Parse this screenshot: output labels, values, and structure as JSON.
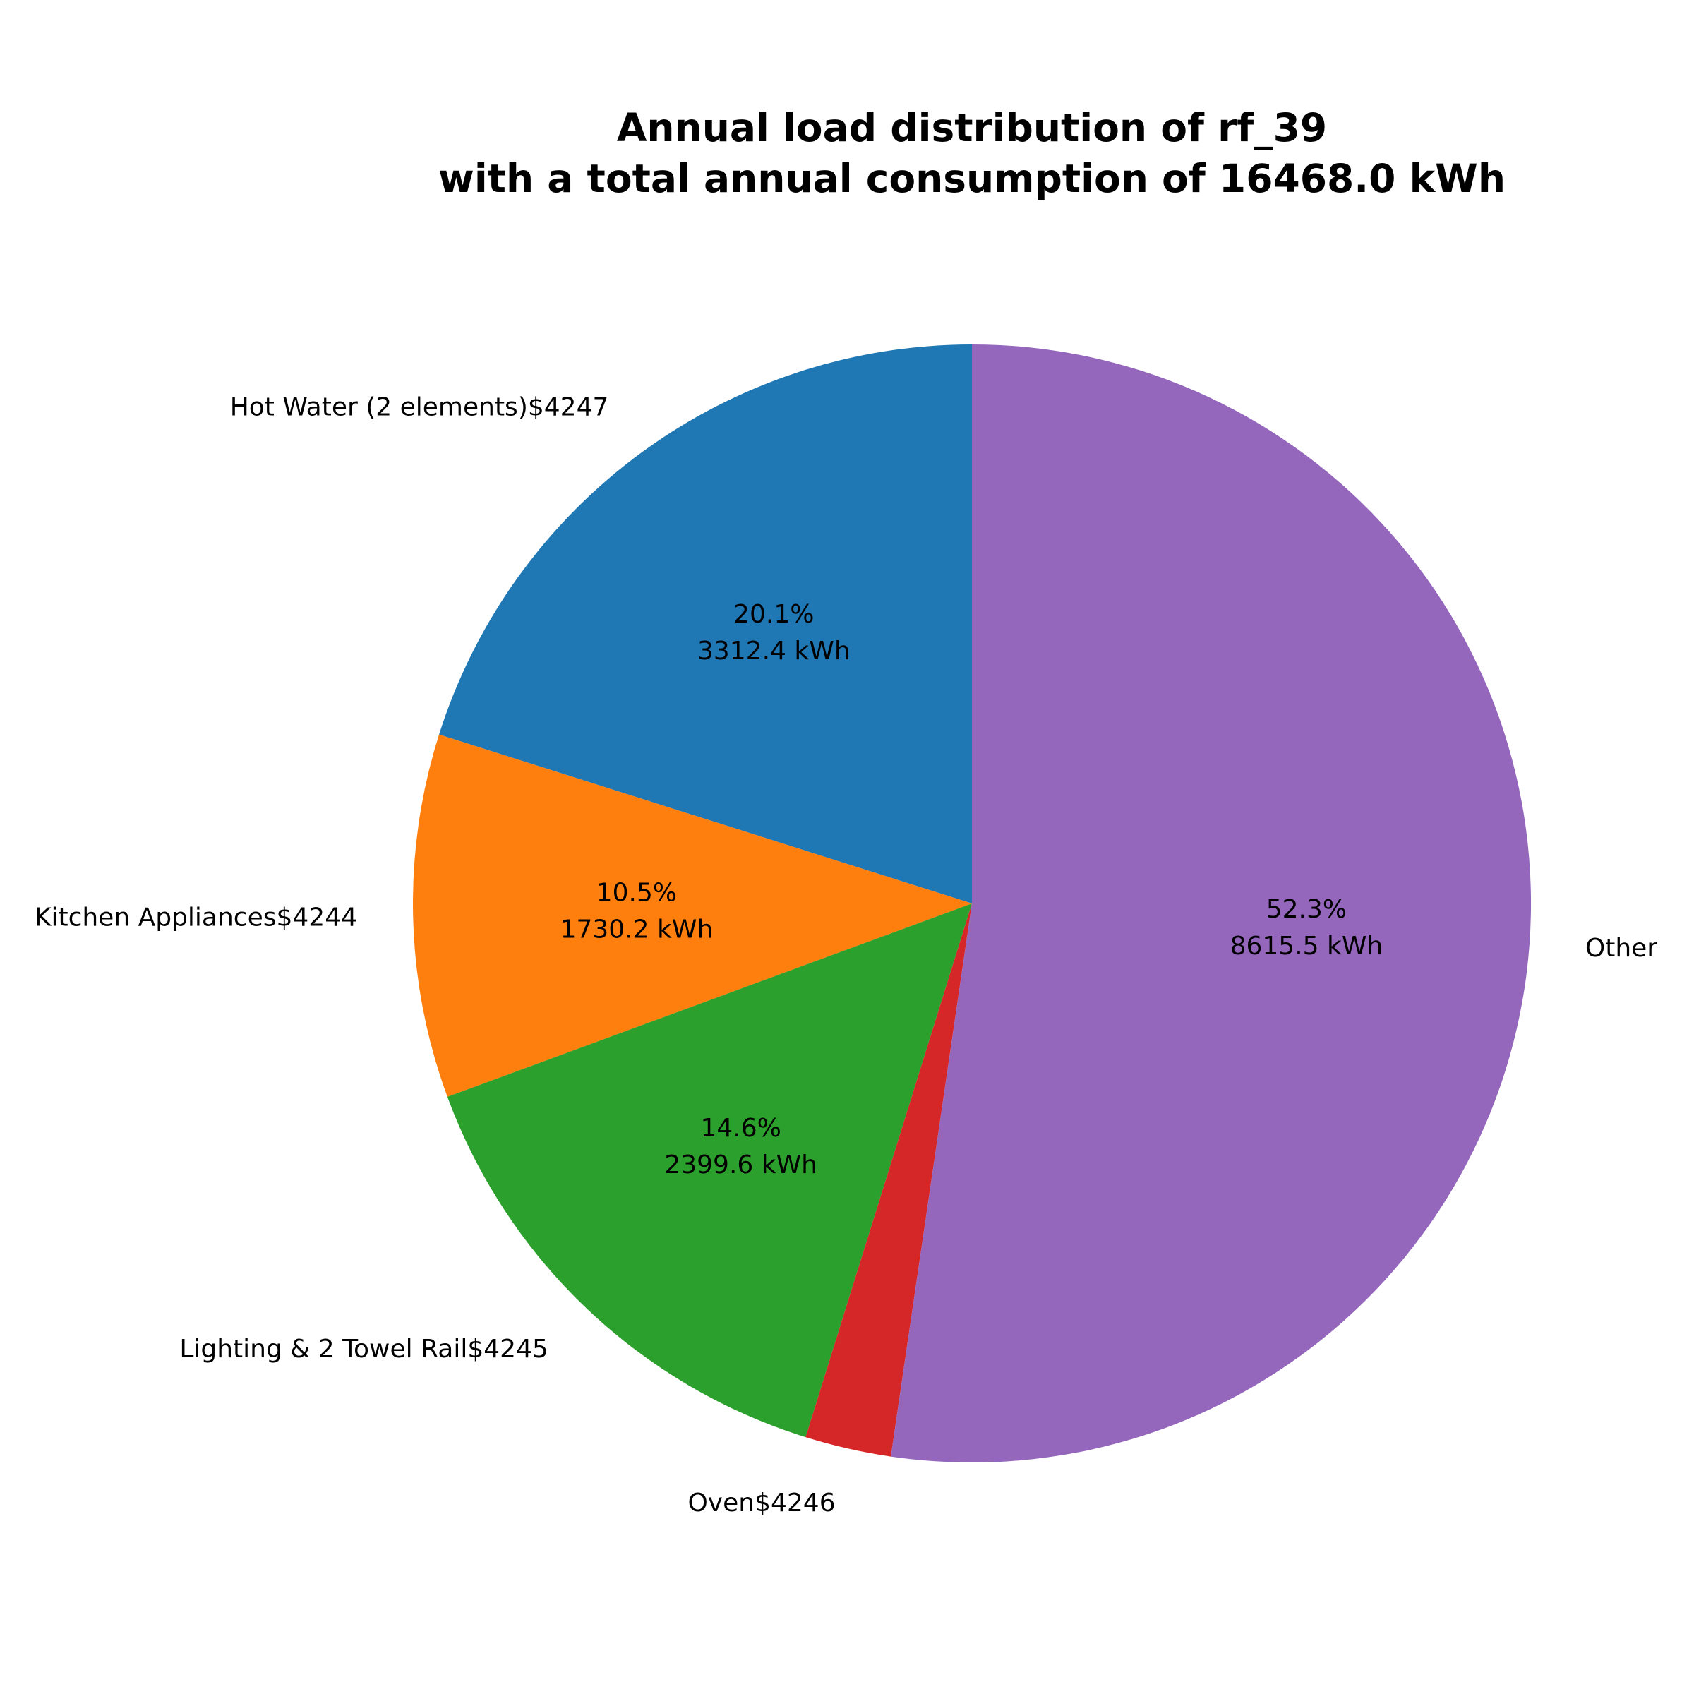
{
  "chart_data": {
    "type": "pie",
    "title_line1": "Annual load distribution of rf_39",
    "title_line2": "with a total annual consumption of 16468.0 kWh",
    "start_angle_deg": 90,
    "direction": "counterclockwise",
    "slices": [
      {
        "label": "Hot Water  (2 elements)$4247",
        "value": 3312.4,
        "pct_text": "20.1%",
        "value_text": "3312.4 kWh",
        "color": "#1f77b4"
      },
      {
        "label": "Kitchen Appliances$4244",
        "value": 1730.2,
        "pct_text": "10.5%",
        "value_text": "1730.2 kWh",
        "color": "#ff7f0e"
      },
      {
        "label": "Lighting & 2 Towel Rail$4245",
        "value": 2399.6,
        "pct_text": "14.6%",
        "value_text": "2399.6 kWh",
        "color": "#2ca02c"
      },
      {
        "label": "Oven$4246",
        "value": 410.3,
        "pct_text": "",
        "value_text": "",
        "color": "#d62728"
      },
      {
        "label": "Other",
        "value": 8615.5,
        "pct_text": "52.3%",
        "value_text": "8615.5 kWh",
        "color": "#9467bd"
      }
    ]
  }
}
